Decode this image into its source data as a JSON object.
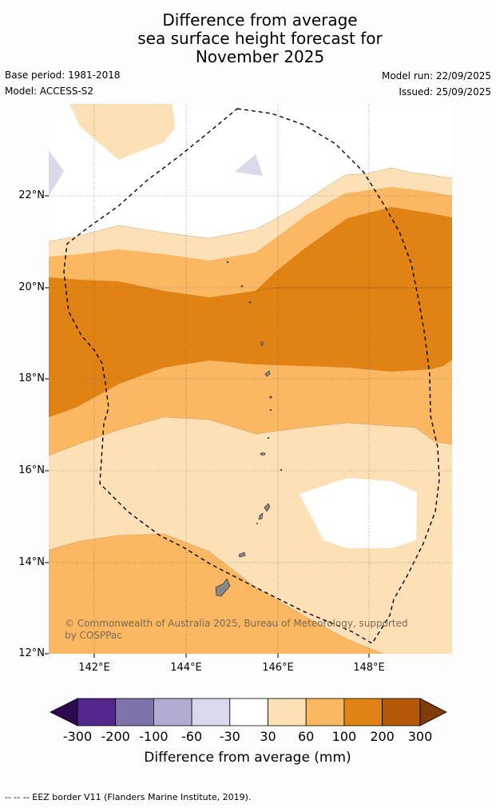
{
  "title": {
    "line1": "Difference from average",
    "line2": "sea surface height forecast for",
    "line3": "November 2025"
  },
  "meta": {
    "base_period": "Base period: 1981-2018",
    "model": "Model: ACCESS-S2",
    "model_run": "Model run: 22/09/2025",
    "issued": "Issued: 25/09/2025"
  },
  "axes": {
    "lat_labels": [
      "22°N",
      "20°N",
      "18°N",
      "16°N",
      "14°N",
      "12°N"
    ],
    "lon_labels": [
      "142°E",
      "144°E",
      "146°E",
      "148°E"
    ]
  },
  "credit": "© Commonwealth of Australia 2025, Bureau of Meteorology, supported by COSPPac",
  "colorbar": {
    "title": "Difference from average (mm)",
    "tick_labels": [
      "-300",
      "-200",
      "-100",
      "-60",
      "-30",
      "30",
      "60",
      "100",
      "200",
      "300"
    ],
    "colors": {
      "below_-300": "#2d0a4e",
      "-300_-200": "#54278f",
      "-200_-100": "#8073ac",
      "-100_-60": "#b2abd2",
      "-60_-30": "#d8daeb",
      "-30_30": "#ffffff",
      "30_60": "#fee0b6",
      "60_100": "#fbb761",
      "100_200": "#e08214",
      "200_300": "#b35806",
      "above_300": "#7f3b08"
    }
  },
  "legend": {
    "eez": "--  --  -- EEZ border V11 (Flanders Marine Institute, 2019)."
  }
}
